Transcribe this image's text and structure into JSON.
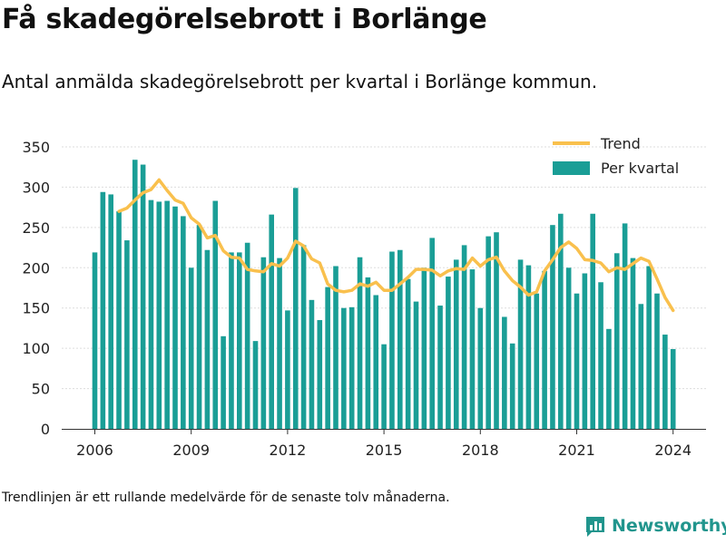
{
  "title": "Få skadegörelsebrott i Borlänge",
  "subtitle": "Antal anmälda skadegörelsebrott per kvartal i Borlänge kommun.",
  "footnote": "Trendlinjen är ett rullande medelvärde för de senaste tolv månaderna.",
  "brand": "Newsworthy",
  "colors": {
    "bars": "#1a9e96",
    "trend": "#f9c04d",
    "brand": "#21958d"
  },
  "chart_data": {
    "type": "bar",
    "title": "",
    "xlabel": "",
    "ylabel": "",
    "ylim": [
      0,
      350
    ],
    "y_ticks": [
      0,
      50,
      100,
      150,
      200,
      250,
      300,
      350
    ],
    "x_ticks": [
      "2006",
      "2009",
      "2012",
      "2015",
      "2018",
      "2021",
      "2024"
    ],
    "grid": "horizontal",
    "legend_position": "top-right",
    "legend": [
      "Trend",
      "Per kvartal"
    ],
    "categories": [
      "2006 Q1",
      "2006 Q2",
      "2006 Q3",
      "2006 Q4",
      "2007 Q1",
      "2007 Q2",
      "2007 Q3",
      "2007 Q4",
      "2008 Q1",
      "2008 Q2",
      "2008 Q3",
      "2008 Q4",
      "2009 Q1",
      "2009 Q2",
      "2009 Q3",
      "2009 Q4",
      "2010 Q1",
      "2010 Q2",
      "2010 Q3",
      "2010 Q4",
      "2011 Q1",
      "2011 Q2",
      "2011 Q3",
      "2011 Q4",
      "2012 Q1",
      "2012 Q2",
      "2012 Q3",
      "2012 Q4",
      "2013 Q1",
      "2013 Q2",
      "2013 Q3",
      "2013 Q4",
      "2014 Q1",
      "2014 Q2",
      "2014 Q3",
      "2014 Q4",
      "2015 Q1",
      "2015 Q2",
      "2015 Q3",
      "2015 Q4",
      "2016 Q1",
      "2016 Q2",
      "2016 Q3",
      "2016 Q4",
      "2017 Q1",
      "2017 Q2",
      "2017 Q3",
      "2017 Q4",
      "2018 Q1",
      "2018 Q2",
      "2018 Q3",
      "2018 Q4",
      "2019 Q1",
      "2019 Q2",
      "2019 Q3",
      "2019 Q4",
      "2020 Q1",
      "2020 Q2",
      "2020 Q3",
      "2020 Q4",
      "2021 Q1",
      "2021 Q2",
      "2021 Q3",
      "2021 Q4",
      "2022 Q1",
      "2022 Q2",
      "2022 Q3",
      "2022 Q4",
      "2023 Q1",
      "2023 Q2",
      "2023 Q3",
      "2023 Q4",
      "2024 Q1"
    ],
    "series": [
      {
        "name": "Per kvartal",
        "type": "bar",
        "values": [
          219,
          294,
          291,
          270,
          234,
          334,
          328,
          284,
          282,
          283,
          276,
          264,
          200,
          253,
          222,
          283,
          115,
          219,
          219,
          231,
          109,
          213,
          266,
          212,
          147,
          299,
          228,
          160,
          135,
          176,
          202,
          150,
          151,
          213,
          188,
          166,
          105,
          220,
          222,
          186,
          158,
          200,
          237,
          153,
          189,
          210,
          228,
          198,
          150,
          239,
          244,
          139,
          106,
          210,
          203,
          168,
          196,
          253,
          267,
          200,
          168,
          193,
          267,
          182,
          124,
          218,
          255,
          212,
          155,
          202,
          168,
          117,
          99
        ]
      },
      {
        "name": "Trend",
        "type": "line",
        "values": [
          null,
          null,
          null,
          270,
          274,
          284,
          293,
          297,
          309,
          296,
          284,
          280,
          262,
          254,
          237,
          240,
          221,
          213,
          212,
          198,
          196,
          195,
          205,
          202,
          212,
          233,
          227,
          211,
          206,
          180,
          172,
          170,
          172,
          180,
          177,
          182,
          172,
          172,
          180,
          188,
          198,
          198,
          197,
          190,
          196,
          199,
          198,
          212,
          202,
          210,
          213,
          196,
          184,
          176,
          166,
          170,
          196,
          210,
          225,
          232,
          224,
          210,
          209,
          206,
          195,
          200,
          198,
          205,
          212,
          208,
          186,
          163,
          147
        ]
      }
    ]
  }
}
